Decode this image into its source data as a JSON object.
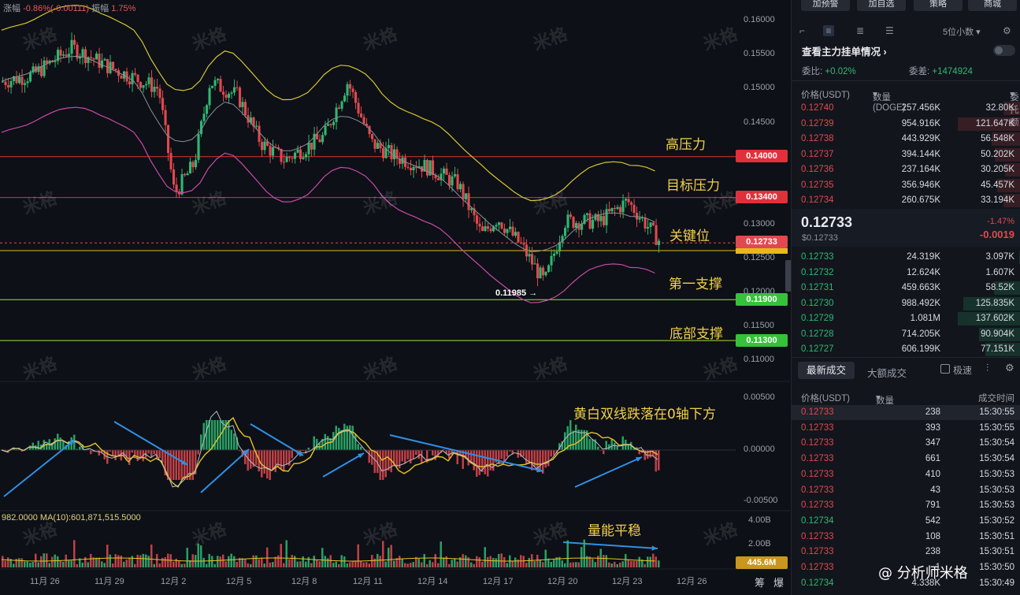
{
  "ticker_strip": {
    "change_label": "涨幅",
    "change_value": "-0.86%(-0.00111)",
    "amplitude_label": "振幅",
    "amplitude_value": "1.75%"
  },
  "price_axis": [
    "0.16000",
    "0.15500",
    "0.15000",
    "0.14500",
    "0.13000",
    "0.12500",
    "0.12000",
    "0.11500",
    "0.11000"
  ],
  "macd_axis": [
    "0.00500",
    "0.00000",
    "-0.00500"
  ],
  "volume_axis": [
    "4.00B",
    "2.00B"
  ],
  "volume_tag": "445.6M",
  "volume_ma_label": "982.0000  MA(10):601,871,515.5000",
  "levels": [
    {
      "name": "高压力",
      "price": "0.14000",
      "color": "#e0303a"
    },
    {
      "name": "目标压力",
      "price": "0.13400",
      "color": "#e0303a"
    },
    {
      "name": "关键位",
      "price": "0.12733",
      "color": "#e0303a"
    },
    {
      "name": "第一支撑",
      "price": "0.11900",
      "color": "#35c23a"
    },
    {
      "name": "底部支撑",
      "price": "0.11300",
      "color": "#35c23a"
    }
  ],
  "low_marker": "0.11985 →",
  "annotations": {
    "macd_note": "黄白双线跌落在0轴下方",
    "volume_note": "量能平稳"
  },
  "x_axis": [
    "11月 26",
    "11月 29",
    "12月 2",
    "12月 5",
    "12月 8",
    "12月 11",
    "12月 14",
    "12月 17",
    "12月 20",
    "12月 23",
    "12月 26"
  ],
  "x_axis_right": [
    "筹",
    "爆"
  ],
  "watermark": "米格",
  "brand": "@ 分析师米格",
  "colors": {
    "up": "#2fb872",
    "down": "#e0494f",
    "annotation": "#f2d04a",
    "background": "#0d1016"
  },
  "panel": {
    "top_buttons": [
      "加预警",
      "加自选",
      "策略",
      "商城"
    ],
    "precision": "5位小数",
    "main_orders_link": "查看主力挂单情况",
    "ratio_label": "委比:",
    "ratio_value": "+0.02%",
    "diff_label": "委差:",
    "diff_value": "+1474924",
    "headers": [
      "价格(USDT)",
      "数量 (DOGE)",
      "委托额"
    ],
    "asks": [
      [
        "0.12740",
        "257.456K",
        "32.80K"
      ],
      [
        "0.12739",
        "954.916K",
        "121.647K"
      ],
      [
        "0.12738",
        "443.929K",
        "56.548K"
      ],
      [
        "0.12737",
        "394.144K",
        "50.202K"
      ],
      [
        "0.12736",
        "237.164K",
        "30.205K"
      ],
      [
        "0.12735",
        "356.946K",
        "45.457K"
      ],
      [
        "0.12734",
        "260.675K",
        "33.194K"
      ]
    ],
    "last_price": "0.12733",
    "last_price_sub": "$0.12733",
    "last_change_pct": "-1.47%",
    "last_change_abs": "-0.0019",
    "bids": [
      [
        "0.12733",
        "24.319K",
        "3.097K"
      ],
      [
        "0.12732",
        "12.624K",
        "1.607K"
      ],
      [
        "0.12731",
        "459.663K",
        "58.52K"
      ],
      [
        "0.12730",
        "988.492K",
        "125.835K"
      ],
      [
        "0.12729",
        "1.081M",
        "137.602K"
      ],
      [
        "0.12728",
        "714.205K",
        "90.904K"
      ],
      [
        "0.12727",
        "606.199K",
        "77.151K"
      ]
    ],
    "trade_tabs": [
      "最新成交",
      "大额成交"
    ],
    "speed_label": "极速",
    "trade_headers": [
      "价格(USDT)",
      "数量(DOGE)",
      "成交时间"
    ],
    "trades": [
      [
        "0.12733",
        "238",
        "15:30:55",
        "down"
      ],
      [
        "0.12733",
        "393",
        "15:30:55",
        "down"
      ],
      [
        "0.12733",
        "347",
        "15:30:54",
        "down"
      ],
      [
        "0.12733",
        "661",
        "15:30:54",
        "down"
      ],
      [
        "0.12733",
        "410",
        "15:30:53",
        "down"
      ],
      [
        "0.12733",
        "43",
        "15:30:53",
        "down"
      ],
      [
        "0.12733",
        "791",
        "15:30:53",
        "down"
      ],
      [
        "0.12734",
        "542",
        "15:30:52",
        "up"
      ],
      [
        "0.12733",
        "108",
        "15:30:51",
        "down"
      ],
      [
        "0.12733",
        "238",
        "15:30:51",
        "down"
      ],
      [
        "0.12733",
        "1",
        "15:30:50",
        "down"
      ],
      [
        "0.12734",
        "4.338K",
        "15:30:49",
        "up"
      ]
    ]
  }
}
